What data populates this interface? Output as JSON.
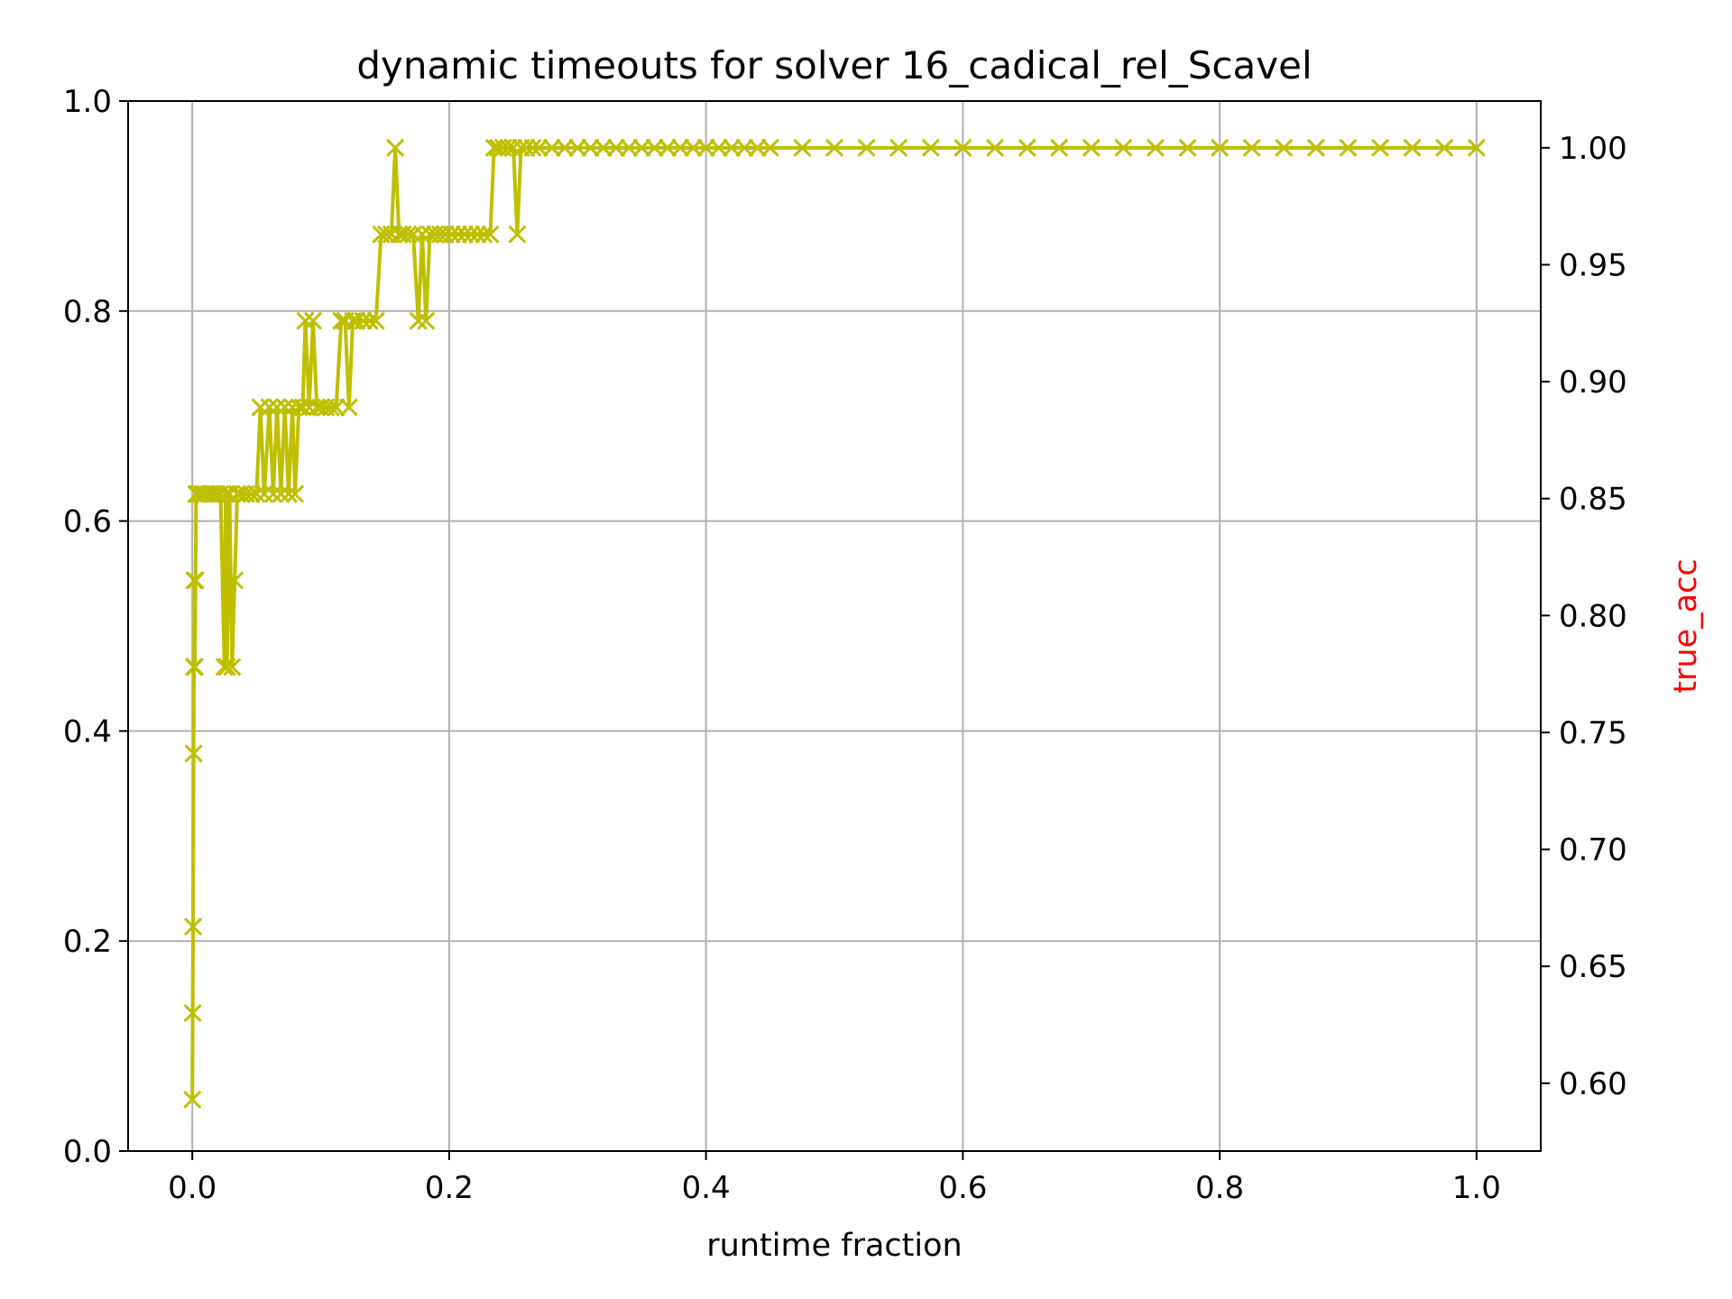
{
  "chart_data": {
    "type": "line",
    "title": "dynamic timeouts for solver 16_cadical_rel_Scavel",
    "xlabel": "runtime fraction",
    "ylabel": "",
    "y2label": "true_acc",
    "xlim": [
      -0.05,
      1.05
    ],
    "ylim": [
      0.0,
      1.0
    ],
    "y2lim": [
      0.571,
      1.02
    ],
    "x_ticks": [
      "0.0",
      "0.2",
      "0.4",
      "0.6",
      "0.8",
      "1.0"
    ],
    "y_ticks": [
      "0.0",
      "0.2",
      "0.4",
      "0.6",
      "0.8",
      "1.0"
    ],
    "y2_ticks": [
      "0.60",
      "0.65",
      "0.70",
      "0.75",
      "0.80",
      "0.85",
      "0.90",
      "0.95",
      "1.00"
    ],
    "grid": true,
    "legend": "none",
    "colors": {
      "series": "#bfbf00",
      "y2label": "#ff0000",
      "grid": "#b0b0b0",
      "axis": "#000000"
    },
    "marker": "x",
    "series": [
      {
        "axis": "right",
        "x": [
          0.0,
          0.0003,
          0.0006,
          0.001,
          0.0013,
          0.0016,
          0.002,
          0.0025,
          0.003,
          0.004,
          0.005,
          0.006,
          0.008,
          0.01,
          0.013,
          0.016,
          0.019,
          0.022,
          0.025,
          0.026,
          0.027,
          0.029,
          0.031,
          0.033,
          0.035,
          0.038,
          0.042,
          0.046,
          0.05,
          0.053,
          0.056,
          0.06,
          0.063,
          0.066,
          0.069,
          0.072,
          0.075,
          0.078,
          0.08,
          0.083,
          0.086,
          0.088,
          0.091,
          0.094,
          0.097,
          0.1,
          0.104,
          0.108,
          0.112,
          0.116,
          0.119,
          0.122,
          0.125,
          0.128,
          0.133,
          0.138,
          0.143,
          0.147,
          0.151,
          0.155,
          0.158,
          0.161,
          0.164,
          0.168,
          0.172,
          0.176,
          0.179,
          0.182,
          0.185,
          0.189,
          0.193,
          0.197,
          0.202,
          0.207,
          0.212,
          0.217,
          0.222,
          0.227,
          0.232,
          0.235,
          0.238,
          0.242,
          0.246,
          0.25,
          0.253,
          0.256,
          0.26,
          0.265,
          0.27,
          0.28,
          0.29,
          0.3,
          0.31,
          0.32,
          0.33,
          0.34,
          0.35,
          0.36,
          0.37,
          0.38,
          0.39,
          0.4,
          0.41,
          0.42,
          0.43,
          0.44,
          0.45,
          0.475,
          0.5,
          0.525,
          0.55,
          0.575,
          0.6,
          0.625,
          0.65,
          0.675,
          0.7,
          0.725,
          0.75,
          0.775,
          0.8,
          0.825,
          0.85,
          0.875,
          0.9,
          0.925,
          0.95,
          0.975,
          1.0
        ],
        "y": [
          0.593,
          0.63,
          0.667,
          0.741,
          0.778,
          0.815,
          0.778,
          0.815,
          0.852,
          0.852,
          0.852,
          0.852,
          0.852,
          0.852,
          0.852,
          0.852,
          0.852,
          0.852,
          0.778,
          0.852,
          0.778,
          0.852,
          0.778,
          0.815,
          0.852,
          0.852,
          0.852,
          0.852,
          0.852,
          0.889,
          0.852,
          0.889,
          0.852,
          0.889,
          0.852,
          0.889,
          0.852,
          0.889,
          0.852,
          0.889,
          0.889,
          0.926,
          0.889,
          0.926,
          0.889,
          0.889,
          0.889,
          0.889,
          0.889,
          0.926,
          0.926,
          0.889,
          0.926,
          0.926,
          0.926,
          0.926,
          0.926,
          0.963,
          0.963,
          0.963,
          1.0,
          0.963,
          0.963,
          0.963,
          0.963,
          0.926,
          0.963,
          0.926,
          0.963,
          0.963,
          0.963,
          0.963,
          0.963,
          0.963,
          0.963,
          0.963,
          0.963,
          0.963,
          0.963,
          1.0,
          1.0,
          1.0,
          1.0,
          1.0,
          0.963,
          1.0,
          1.0,
          1.0,
          1.0,
          1.0,
          1.0,
          1.0,
          1.0,
          1.0,
          1.0,
          1.0,
          1.0,
          1.0,
          1.0,
          1.0,
          1.0,
          1.0,
          1.0,
          1.0,
          1.0,
          1.0,
          1.0,
          1.0,
          1.0,
          1.0,
          1.0,
          1.0,
          1.0,
          1.0,
          1.0,
          1.0,
          1.0,
          1.0,
          1.0,
          1.0,
          1.0,
          1.0,
          1.0,
          1.0,
          1.0,
          1.0,
          1.0,
          1.0,
          1.0
        ]
      }
    ]
  }
}
